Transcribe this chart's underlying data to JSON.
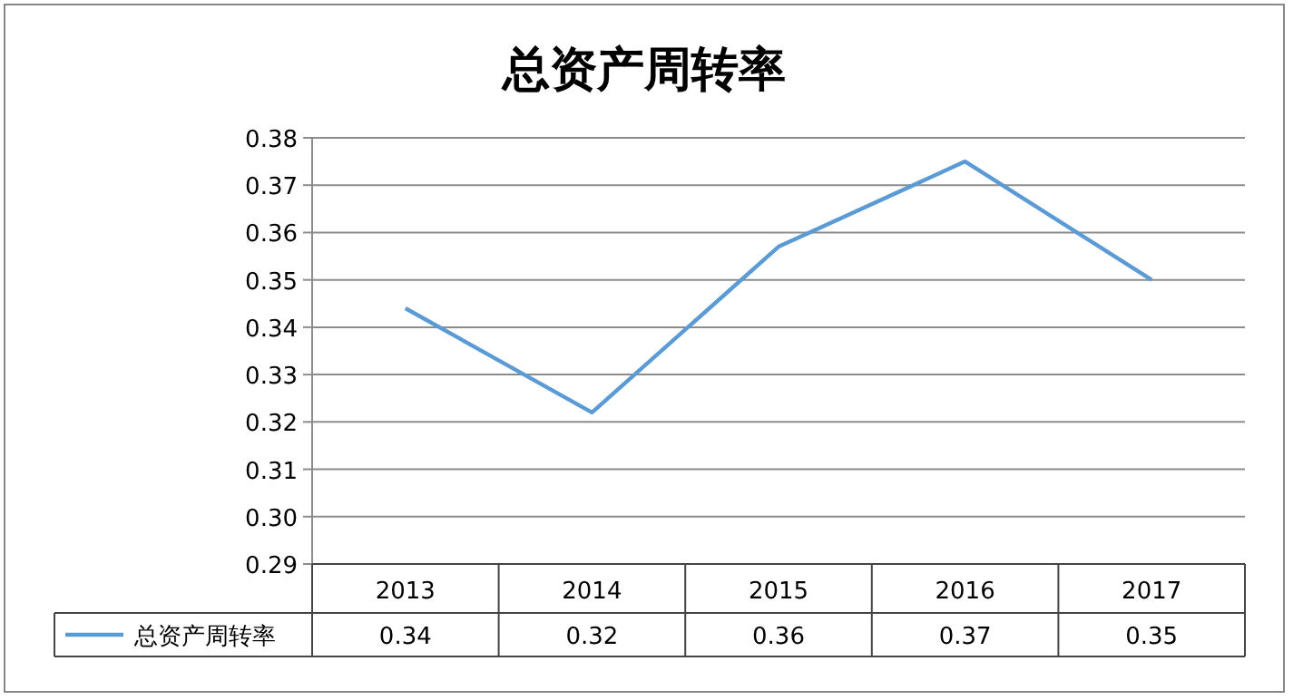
{
  "chart_data": {
    "type": "line",
    "title": "总资产周转率",
    "categories": [
      "2013",
      "2014",
      "2015",
      "2016",
      "2017"
    ],
    "series": [
      {
        "name": "总资产周转率",
        "color": "#5b9bd5",
        "values": [
          0.344,
          0.322,
          0.357,
          0.375,
          0.35
        ],
        "value_labels": [
          "0.34",
          "0.32",
          "0.36",
          "0.37",
          "0.35"
        ]
      }
    ],
    "ylim": [
      0.29,
      0.38
    ],
    "yticks": [
      0.29,
      {
        "value": 0.3,
        "label": "0.30"
      },
      0.31,
      0.32,
      0.33,
      0.34,
      0.35,
      0.36,
      0.37,
      0.38
    ],
    "grid": "y",
    "legend": "bottom"
  }
}
